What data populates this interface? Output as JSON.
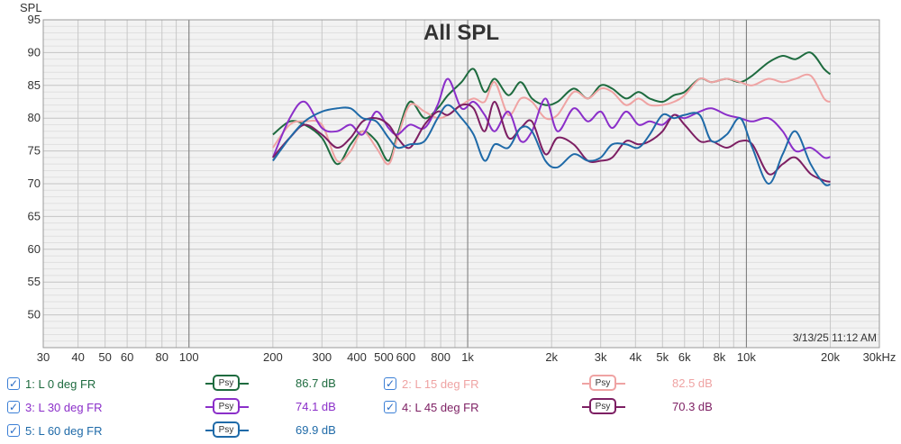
{
  "chart_data": {
    "type": "line",
    "title": "All SPL",
    "ylabel": "SPL",
    "xlabel": "",
    "x_scale": "log",
    "xlim": [
      30,
      30000
    ],
    "ylim": [
      45,
      95
    ],
    "y_ticks": [
      50,
      55,
      60,
      65,
      70,
      75,
      80,
      85,
      90,
      95
    ],
    "x_ticks": [
      {
        "v": 30,
        "label": "30"
      },
      {
        "v": 40,
        "label": "40"
      },
      {
        "v": 50,
        "label": "50"
      },
      {
        "v": 60,
        "label": "60"
      },
      {
        "v": 80,
        "label": "80"
      },
      {
        "v": 100,
        "label": "100"
      },
      {
        "v": 200,
        "label": "200"
      },
      {
        "v": 300,
        "label": "300"
      },
      {
        "v": 400,
        "label": "400"
      },
      {
        "v": 500,
        "label": "500"
      },
      {
        "v": 600,
        "label": "600"
      },
      {
        "v": 800,
        "label": "800"
      },
      {
        "v": 1000,
        "label": "1k"
      },
      {
        "v": 2000,
        "label": "2k"
      },
      {
        "v": 3000,
        "label": "3k"
      },
      {
        "v": 4000,
        "label": "4k"
      },
      {
        "v": 5000,
        "label": "5k"
      },
      {
        "v": 6000,
        "label": "6k"
      },
      {
        "v": 8000,
        "label": "8k"
      },
      {
        "v": 10000,
        "label": "10k"
      },
      {
        "v": 20000,
        "label": "20k"
      },
      {
        "v": 30000,
        "label": "30kHz"
      }
    ],
    "grid": true,
    "timestamp": "3/13/25 11:12 AM",
    "series": [
      {
        "name": "1: L 0 deg FR",
        "color": "#1e6b3f",
        "value_label": "86.7 dB",
        "x": [
          200,
          230,
          260,
          300,
          340,
          380,
          420,
          470,
          520,
          560,
          620,
          700,
          780,
          850,
          950,
          1050,
          1150,
          1250,
          1400,
          1550,
          1700,
          1900,
          2100,
          2400,
          2700,
          3000,
          3300,
          3700,
          4100,
          4500,
          5000,
          5500,
          6000,
          6800,
          7500,
          8500,
          9500,
          10500,
          12000,
          13500,
          15000,
          17000,
          19000,
          20000
        ],
        "y": [
          77.5,
          79.5,
          79,
          77,
          73,
          76,
          78,
          76.5,
          73.5,
          77.5,
          82.5,
          80,
          81.5,
          83.5,
          85.5,
          87.5,
          84,
          86,
          83.5,
          85.5,
          83,
          82,
          82.5,
          84.5,
          83,
          85,
          84.5,
          83,
          84,
          83,
          82.5,
          83.5,
          84,
          86,
          85.5,
          86,
          85.5,
          86.5,
          88.5,
          89.5,
          89,
          90,
          87.5,
          86.7
        ]
      },
      {
        "name": "2: L 15 deg FR",
        "color": "#efa3a3",
        "value_label": "82.5 dB",
        "x": [
          200,
          230,
          260,
          300,
          340,
          380,
          420,
          470,
          520,
          560,
          620,
          700,
          780,
          850,
          950,
          1050,
          1150,
          1250,
          1400,
          1550,
          1700,
          1900,
          2100,
          2400,
          2700,
          3000,
          3300,
          3700,
          4100,
          4500,
          5000,
          5500,
          6000,
          6800,
          7500,
          8500,
          9500,
          10500,
          12000,
          13500,
          15000,
          17000,
          19000,
          20000
        ],
        "y": [
          75.5,
          79,
          79.5,
          79,
          73.5,
          75,
          78,
          75.5,
          73,
          77,
          82,
          81,
          80,
          80.5,
          82,
          83,
          82.5,
          85.5,
          80.5,
          83,
          82.5,
          80,
          80.5,
          84,
          83,
          84.5,
          84,
          82,
          83,
          82,
          82,
          82.5,
          83.5,
          86,
          85.5,
          86,
          85.5,
          85,
          86,
          85.5,
          86,
          86.5,
          83,
          82.5
        ]
      },
      {
        "name": "3: L 30 deg FR",
        "color": "#8b2fc9",
        "value_label": "74.1 dB",
        "x": [
          200,
          230,
          260,
          300,
          340,
          380,
          420,
          470,
          520,
          560,
          620,
          700,
          780,
          850,
          950,
          1050,
          1150,
          1250,
          1400,
          1550,
          1700,
          1900,
          2100,
          2400,
          2700,
          3000,
          3300,
          3700,
          4100,
          4500,
          5000,
          5500,
          6000,
          6800,
          7500,
          8500,
          9500,
          10500,
          12000,
          13500,
          15000,
          17000,
          19000,
          20000
        ],
        "y": [
          74,
          80,
          82.5,
          78.5,
          78,
          79,
          77.5,
          81,
          78.5,
          77.5,
          79,
          78.5,
          82,
          86,
          81.5,
          82.5,
          80.5,
          78,
          81,
          76.5,
          78,
          83,
          78,
          81.5,
          79.5,
          81,
          78.5,
          81,
          79,
          79.5,
          79,
          80.5,
          80,
          81,
          81.5,
          80.5,
          80,
          79.5,
          80,
          78,
          75,
          75.5,
          74,
          74.1
        ]
      },
      {
        "name": "4: L 45 deg FR",
        "color": "#7d1f63",
        "value_label": "70.3 dB",
        "x": [
          200,
          230,
          260,
          300,
          340,
          380,
          420,
          470,
          520,
          560,
          620,
          700,
          780,
          850,
          950,
          1050,
          1150,
          1250,
          1400,
          1550,
          1700,
          1900,
          2100,
          2400,
          2700,
          3000,
          3300,
          3700,
          4100,
          4500,
          5000,
          5500,
          6000,
          6800,
          7500,
          8500,
          9500,
          10500,
          12000,
          13500,
          15000,
          17000,
          19000,
          20000
        ],
        "y": [
          74,
          77,
          79,
          77.5,
          75.5,
          77,
          79.5,
          80,
          79,
          77,
          75.5,
          79,
          81,
          80.5,
          82,
          81.5,
          78,
          82.5,
          77,
          78.5,
          79.5,
          74.5,
          77,
          76,
          73.5,
          73.5,
          74,
          76.5,
          76,
          76.5,
          78,
          80.5,
          79,
          76.5,
          76.5,
          75.5,
          76.5,
          76,
          71.5,
          73,
          74,
          71.5,
          70.5,
          70.3
        ]
      },
      {
        "name": "5: L 60 deg FR",
        "color": "#1f6aa8",
        "value_label": "69.9 dB",
        "x": [
          200,
          230,
          260,
          300,
          340,
          380,
          420,
          470,
          520,
          560,
          620,
          700,
          780,
          850,
          950,
          1050,
          1150,
          1250,
          1400,
          1550,
          1700,
          1900,
          2100,
          2400,
          2700,
          3000,
          3300,
          3700,
          4100,
          4500,
          5000,
          5500,
          6000,
          6800,
          7500,
          8500,
          9500,
          10500,
          12000,
          13500,
          15000,
          17000,
          19000,
          20000
        ],
        "y": [
          73.5,
          77,
          79.5,
          81,
          81.5,
          81.5,
          80,
          79.5,
          77,
          75.5,
          76,
          76.5,
          80,
          82,
          80,
          77.5,
          73.5,
          76,
          75.5,
          78.5,
          78,
          73.5,
          72.5,
          74.5,
          73.5,
          74,
          76,
          76,
          75.5,
          77.5,
          80.5,
          80,
          80.5,
          80.5,
          76.5,
          77.5,
          80,
          75.5,
          70,
          74.5,
          78,
          73,
          70,
          69.9
        ]
      }
    ]
  }
}
